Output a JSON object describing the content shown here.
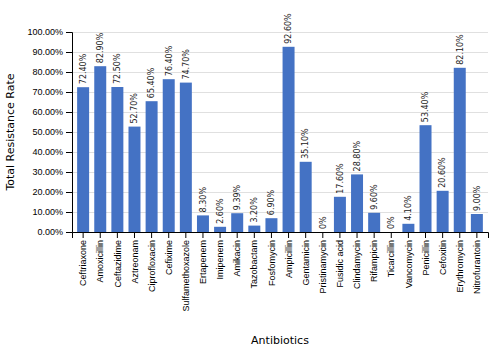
{
  "chart_data": {
    "type": "bar",
    "categories": [
      "Ceftriaxone",
      "Amoxicillin",
      "Ceftazidime",
      "Aztreonam",
      "Ciprofloxacin",
      "Cefixime",
      "Sulfamethoxazole",
      "Ertapenem",
      "Imipenem",
      "Amikacin",
      "Tazobactam",
      "Fosfomycin",
      "Ampicillin",
      "Gentamicin",
      "Pristinamycin",
      "Fusidic acid",
      "Clindamycin",
      "Rifampicin",
      "Ticarcillin",
      "Vancomycin",
      "Penicillin",
      "Cefoxitin",
      "Erythromycin",
      "Nitrofurantoin"
    ],
    "values": [
      72.4,
      82.9,
      72.5,
      52.7,
      65.4,
      76.4,
      74.7,
      8.3,
      2.6,
      9.39,
      3.2,
      6.9,
      92.6,
      35.1,
      0,
      17.6,
      28.8,
      9.6,
      0,
      4.1,
      53.4,
      20.6,
      82.1,
      9.0
    ],
    "value_labels": [
      "72.40%",
      "82.90%",
      "72.50%",
      "52.70%",
      "65.40%",
      "76.40%",
      "74.70%",
      "8.30%",
      "2.60%",
      "9.39%",
      "3.20%",
      "6.90%",
      "92.60%",
      "35.10%",
      "0%",
      "17.60%",
      "28.80%",
      "9.60%",
      "0%",
      "4.10%",
      "53.40%",
      "20.60%",
      "82.10%",
      "9.00%"
    ],
    "color": "#4472C4",
    "xlabel": "Antibiotics",
    "ylabel": "Total Resistance Rate",
    "ylim": [
      0,
      100
    ],
    "yticks": [
      {
        "value": 0,
        "label": "0.00%"
      },
      {
        "value": 10,
        "label": "10.00%"
      },
      {
        "value": 20,
        "label": "20.00%"
      },
      {
        "value": 30,
        "label": "30.00%"
      },
      {
        "value": 40,
        "label": "40.00%"
      },
      {
        "value": 50,
        "label": "50.00%"
      },
      {
        "value": 60,
        "label": "60.00%"
      },
      {
        "value": 70,
        "label": "70.00%"
      },
      {
        "value": 80,
        "label": "80.00%"
      },
      {
        "value": 90,
        "label": "90.00%"
      },
      {
        "value": 100,
        "label": "100.00%"
      }
    ],
    "grid": true
  }
}
